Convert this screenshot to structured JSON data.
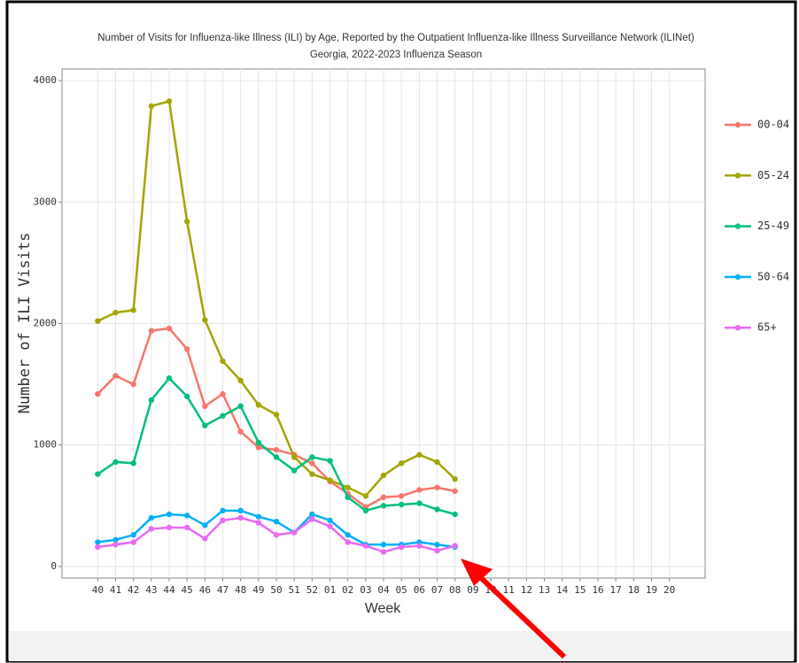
{
  "chart_data": {
    "type": "line",
    "title": "Number of Visits for Influenza-like Illness (ILI) by Age, Reported by the Outpatient Influenza-like Illness Surveillance Network (ILINet)",
    "subtitle": "Georgia, 2022-2023 Influenza Season",
    "x_label": "Week",
    "y_label": "Number of ILI Visits",
    "categories": [
      "40",
      "41",
      "42",
      "43",
      "44",
      "45",
      "46",
      "47",
      "48",
      "49",
      "50",
      "51",
      "52",
      "01",
      "02",
      "03",
      "04",
      "05",
      "06",
      "07",
      "08",
      "09",
      "10",
      "11",
      "12",
      "13",
      "14",
      "15",
      "16",
      "17",
      "18",
      "19",
      "20"
    ],
    "series": [
      {
        "name": "00-04",
        "color": "#F8766D",
        "values": [
          1420,
          1570,
          1500,
          1940,
          1960,
          1790,
          1320,
          1420,
          1110,
          980,
          960,
          920,
          850,
          700,
          600,
          490,
          570,
          580,
          630,
          650,
          620,
          null,
          null,
          null,
          null,
          null,
          null,
          null,
          null,
          null,
          null,
          null,
          null
        ]
      },
      {
        "name": "05-24",
        "color": "#A3A500",
        "values": [
          2020,
          2090,
          2110,
          3790,
          3830,
          2840,
          2030,
          1690,
          1530,
          1330,
          1250,
          900,
          760,
          710,
          650,
          580,
          750,
          850,
          920,
          860,
          720,
          null,
          null,
          null,
          null,
          null,
          null,
          null,
          null,
          null,
          null,
          null,
          null
        ]
      },
      {
        "name": "25-49",
        "color": "#00BF7D",
        "values": [
          760,
          860,
          850,
          1370,
          1550,
          1400,
          1160,
          1240,
          1320,
          1020,
          900,
          790,
          900,
          870,
          570,
          460,
          500,
          510,
          520,
          470,
          430,
          null,
          null,
          null,
          null,
          null,
          null,
          null,
          null,
          null,
          null,
          null,
          null
        ]
      },
      {
        "name": "50-64",
        "color": "#00B0F6",
        "values": [
          200,
          220,
          260,
          400,
          430,
          420,
          340,
          460,
          460,
          410,
          370,
          280,
          430,
          380,
          260,
          180,
          180,
          180,
          200,
          180,
          160,
          null,
          null,
          null,
          null,
          null,
          null,
          null,
          null,
          null,
          null,
          null,
          null
        ]
      },
      {
        "name": "65+",
        "color": "#E76BF3",
        "values": [
          160,
          180,
          200,
          310,
          320,
          320,
          230,
          380,
          400,
          360,
          260,
          280,
          390,
          330,
          200,
          170,
          120,
          160,
          170,
          130,
          170,
          null,
          null,
          null,
          null,
          null,
          null,
          null,
          null,
          null,
          null,
          null,
          null
        ]
      }
    ],
    "ylim": [
      -95,
      4095
    ],
    "yticks": [
      0,
      1000,
      2000,
      3000,
      4000
    ],
    "grid": true
  }
}
